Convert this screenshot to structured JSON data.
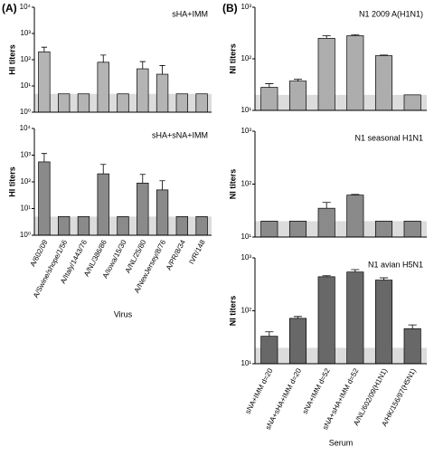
{
  "chart_data": [
    {
      "type": "bar",
      "title": "sHA+IMM",
      "panel_label": "(A)",
      "ylabel": "HI titers",
      "log_y": true,
      "ylim": [
        1,
        10000
      ],
      "yticks": [
        {
          "value": 1,
          "label": "10⁰"
        },
        {
          "value": 10,
          "label": "10¹"
        },
        {
          "value": 100,
          "label": "10²"
        },
        {
          "value": 1000,
          "label": "10³"
        },
        {
          "value": 10000,
          "label": "10⁴"
        }
      ],
      "limit": 5,
      "color": "#b4b4b4",
      "values": [
        200,
        5,
        5,
        80,
        5,
        45,
        28,
        5,
        5
      ],
      "error": [
        100,
        null,
        null,
        70,
        null,
        40,
        32,
        null,
        null
      ]
    },
    {
      "type": "bar",
      "title": "sHA+sNA+IMM",
      "ylabel": "HI titers",
      "xlabel": "Virus",
      "log_y": true,
      "ylim": [
        1,
        10000
      ],
      "yticks": [
        {
          "value": 1,
          "label": "10⁰"
        },
        {
          "value": 10,
          "label": "10¹"
        },
        {
          "value": 100,
          "label": "10²"
        },
        {
          "value": 1000,
          "label": "10³"
        },
        {
          "value": 10000,
          "label": "10⁴"
        }
      ],
      "limit": 5,
      "color": "#8a8a8a",
      "categories": [
        "A/602/09",
        "A/Swine/shope/1/56",
        "A/Italy/1443/76",
        "A/NL/386/86",
        "A/Iowa/15/30",
        "A/NL/25/80",
        "A/NewJersey/8/76",
        "A/PR/8/34",
        "IVR/148"
      ],
      "values": [
        560,
        5,
        5,
        200,
        5,
        90,
        50,
        5,
        5
      ],
      "error": [
        590,
        null,
        null,
        250,
        null,
        100,
        60,
        null,
        null
      ]
    },
    {
      "type": "bar",
      "title": "N1 2009 A(H1N1)",
      "panel_label": "(B)",
      "ylabel": "NI titers",
      "log_y": true,
      "ylim": [
        10,
        1000
      ],
      "yticks": [
        {
          "value": 10,
          "label": "10¹"
        },
        {
          "value": 100,
          "label": "10²"
        },
        {
          "value": 1000,
          "label": "10³"
        }
      ],
      "limit": 20,
      "color": "#adadad",
      "values": [
        28,
        37,
        250,
        280,
        115,
        20
      ],
      "error": [
        5,
        3,
        30,
        15,
        3,
        null
      ]
    },
    {
      "type": "bar",
      "title": "N1 seasonal H1N1",
      "ylabel": "NI titers",
      "log_y": true,
      "ylim": [
        10,
        1000
      ],
      "yticks": [
        {
          "value": 10,
          "label": "10¹"
        },
        {
          "value": 100,
          "label": "10²"
        },
        {
          "value": 1000,
          "label": "10³"
        }
      ],
      "limit": 20,
      "color": "#8a8a8a",
      "values": [
        20,
        20,
        35,
        62,
        20,
        20
      ],
      "error": [
        null,
        null,
        10,
        2,
        null,
        null
      ]
    },
    {
      "type": "bar",
      "title": "N1 avian H5N1",
      "ylabel": "NI titers",
      "xlabel": "Serum",
      "log_y": true,
      "ylim": [
        10,
        1000
      ],
      "yticks": [
        {
          "value": 10,
          "label": "10¹"
        },
        {
          "value": 100,
          "label": "10²"
        },
        {
          "value": 1000,
          "label": "10³"
        }
      ],
      "limit": 20,
      "color": "#686868",
      "categories": [
        "sNA+IMM d=20",
        "sNA+sHA+IMM d=20",
        "sNA+IMM d=52",
        "sNA+sHA+IMM d=52",
        "A/NL/602/09(H1N1)",
        "A/HK/156/97(H5N1)"
      ],
      "values": [
        33,
        72,
        440,
        540,
        380,
        46
      ],
      "error": [
        7,
        6,
        20,
        60,
        40,
        8
      ]
    }
  ]
}
